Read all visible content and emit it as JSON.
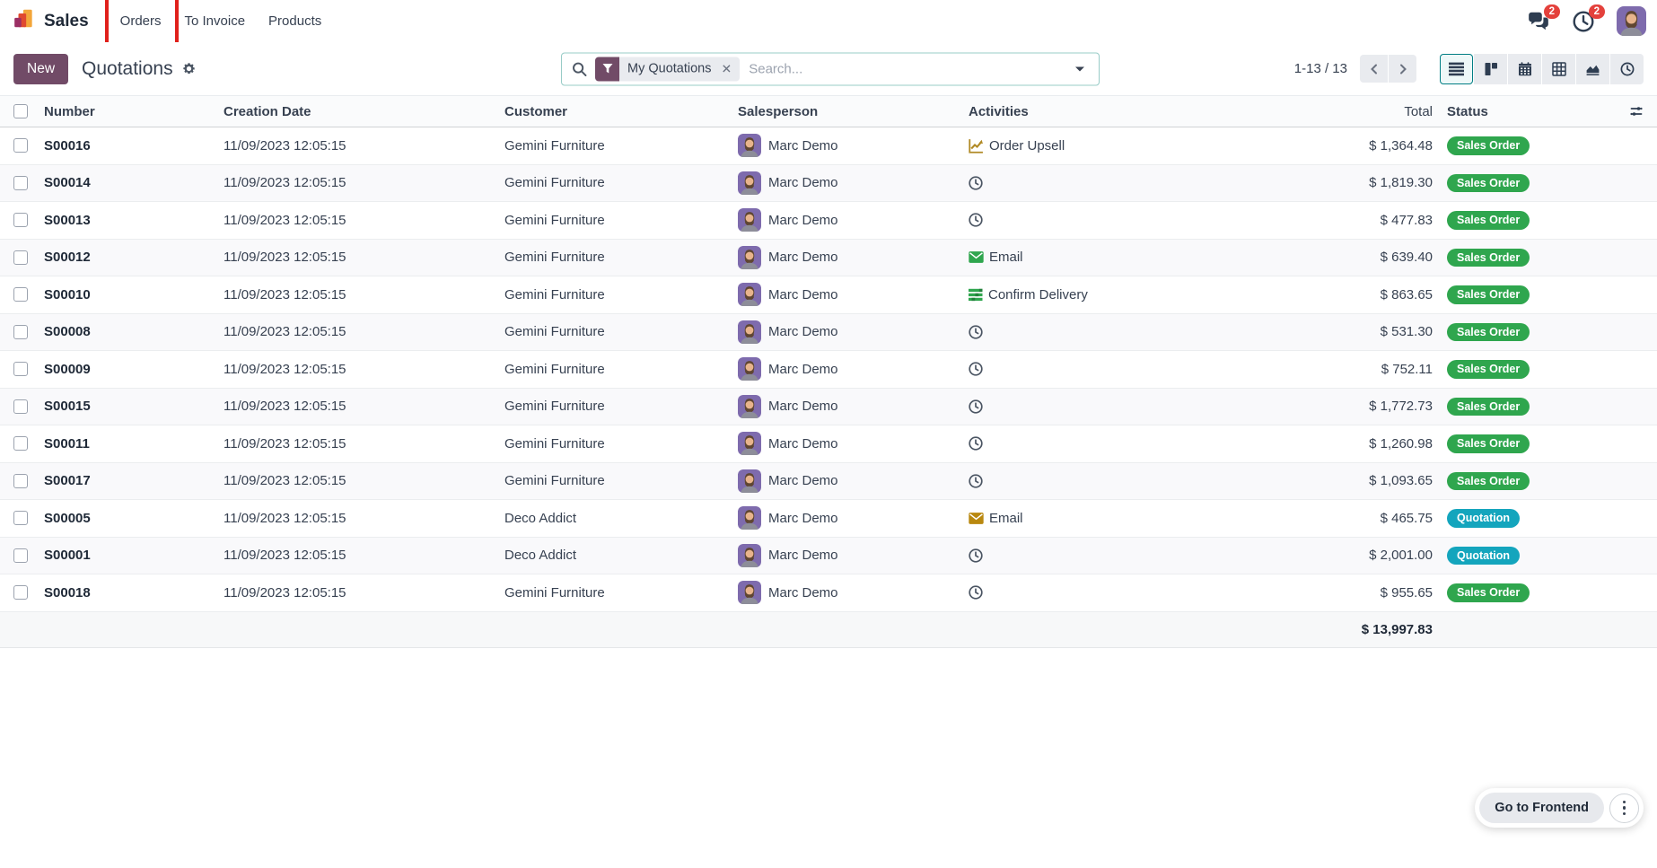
{
  "colors": {
    "brand": "#714B67",
    "success": "#2fa64e",
    "info": "#14a5bd",
    "danger": "#e4413c",
    "teal_accent": "#017e84",
    "annotation_red": "#e0201b"
  },
  "navbar": {
    "brand": "Sales",
    "items": [
      {
        "label": "Orders",
        "annotated": true
      },
      {
        "label": "To Invoice",
        "annotated": false
      },
      {
        "label": "Products",
        "annotated": false
      }
    ],
    "systray": {
      "messages_count": "2",
      "activities_count": "2"
    }
  },
  "control_panel": {
    "new_button": "New",
    "title": "Quotations",
    "search": {
      "facet_label": "My Quotations",
      "facet_remove": "✕",
      "placeholder": "Search..."
    },
    "pager": {
      "display": "1-13 / 13"
    },
    "view_switcher": [
      "list-view",
      "kanban-view",
      "calendar-view",
      "pivot-view",
      "graph-view",
      "activity-view"
    ],
    "active_view": "list-view"
  },
  "table": {
    "columns": [
      "Number",
      "Creation Date",
      "Customer",
      "Salesperson",
      "Activities",
      "Total",
      "Status"
    ],
    "rows": [
      {
        "number": "S00016",
        "creation_date": "11/09/2023 12:05:15",
        "customer": "Gemini Furniture",
        "salesperson": "Marc Demo",
        "activity": {
          "icon": "upsell-icon",
          "label": "Order Upsell"
        },
        "total": "$ 1,364.48",
        "status": "Sales Order",
        "status_type": "success"
      },
      {
        "number": "S00014",
        "creation_date": "11/09/2023 12:05:15",
        "customer": "Gemini Furniture",
        "salesperson": "Marc Demo",
        "activity": {
          "icon": "clock-icon",
          "label": ""
        },
        "total": "$ 1,819.30",
        "status": "Sales Order",
        "status_type": "success"
      },
      {
        "number": "S00013",
        "creation_date": "11/09/2023 12:05:15",
        "customer": "Gemini Furniture",
        "salesperson": "Marc Demo",
        "activity": {
          "icon": "clock-icon",
          "label": ""
        },
        "total": "$ 477.83",
        "status": "Sales Order",
        "status_type": "success"
      },
      {
        "number": "S00012",
        "creation_date": "11/09/2023 12:05:15",
        "customer": "Gemini Furniture",
        "salesperson": "Marc Demo",
        "activity": {
          "icon": "email-green-icon",
          "label": "Email"
        },
        "total": "$ 639.40",
        "status": "Sales Order",
        "status_type": "success"
      },
      {
        "number": "S00010",
        "creation_date": "11/09/2023 12:05:15",
        "customer": "Gemini Furniture",
        "salesperson": "Marc Demo",
        "activity": {
          "icon": "tasks-icon",
          "label": "Confirm Delivery"
        },
        "total": "$ 863.65",
        "status": "Sales Order",
        "status_type": "success"
      },
      {
        "number": "S00008",
        "creation_date": "11/09/2023 12:05:15",
        "customer": "Gemini Furniture",
        "salesperson": "Marc Demo",
        "activity": {
          "icon": "clock-icon",
          "label": ""
        },
        "total": "$ 531.30",
        "status": "Sales Order",
        "status_type": "success"
      },
      {
        "number": "S00009",
        "creation_date": "11/09/2023 12:05:15",
        "customer": "Gemini Furniture",
        "salesperson": "Marc Demo",
        "activity": {
          "icon": "clock-icon",
          "label": ""
        },
        "total": "$ 752.11",
        "status": "Sales Order",
        "status_type": "success"
      },
      {
        "number": "S00015",
        "creation_date": "11/09/2023 12:05:15",
        "customer": "Gemini Furniture",
        "salesperson": "Marc Demo",
        "activity": {
          "icon": "clock-icon",
          "label": ""
        },
        "total": "$ 1,772.73",
        "status": "Sales Order",
        "status_type": "success"
      },
      {
        "number": "S00011",
        "creation_date": "11/09/2023 12:05:15",
        "customer": "Gemini Furniture",
        "salesperson": "Marc Demo",
        "activity": {
          "icon": "clock-icon",
          "label": ""
        },
        "total": "$ 1,260.98",
        "status": "Sales Order",
        "status_type": "success"
      },
      {
        "number": "S00017",
        "creation_date": "11/09/2023 12:05:15",
        "customer": "Gemini Furniture",
        "salesperson": "Marc Demo",
        "activity": {
          "icon": "clock-icon",
          "label": ""
        },
        "total": "$ 1,093.65",
        "status": "Sales Order",
        "status_type": "success"
      },
      {
        "number": "S00005",
        "creation_date": "11/09/2023 12:05:15",
        "customer": "Deco Addict",
        "salesperson": "Marc Demo",
        "activity": {
          "icon": "email-amber-icon",
          "label": "Email"
        },
        "total": "$ 465.75",
        "status": "Quotation",
        "status_type": "info"
      },
      {
        "number": "S00001",
        "creation_date": "11/09/2023 12:05:15",
        "customer": "Deco Addict",
        "salesperson": "Marc Demo",
        "activity": {
          "icon": "clock-icon",
          "label": ""
        },
        "total": "$ 2,001.00",
        "status": "Quotation",
        "status_type": "info"
      },
      {
        "number": "S00018",
        "creation_date": "11/09/2023 12:05:15",
        "customer": "Gemini Furniture",
        "salesperson": "Marc Demo",
        "activity": {
          "icon": "clock-icon",
          "label": ""
        },
        "total": "$ 955.65",
        "status": "Sales Order",
        "status_type": "success"
      }
    ],
    "footer_total": "$ 13,997.83"
  },
  "fab": {
    "label": "Go to Frontend"
  }
}
